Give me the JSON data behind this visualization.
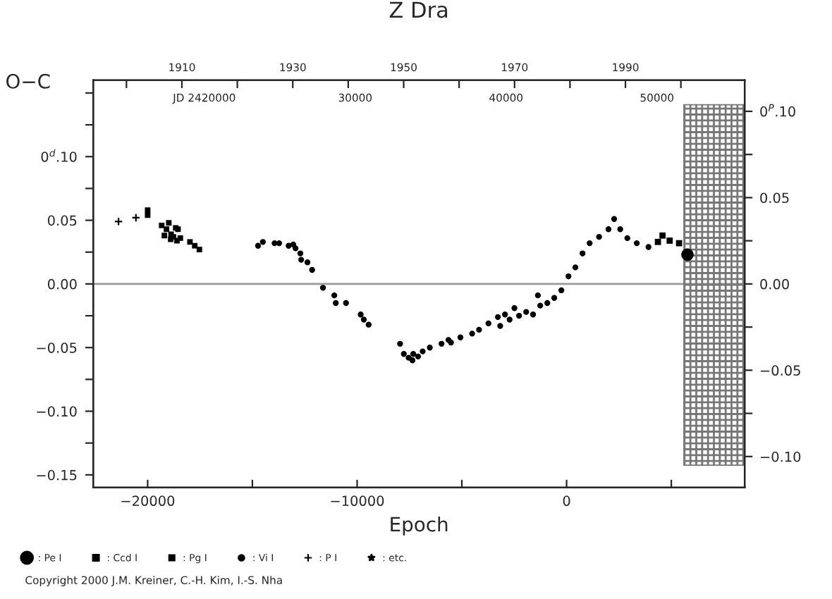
{
  "chart_data": {
    "type": "scatter",
    "title": "Z Dra",
    "xlabel": "Epoch",
    "ylabel": "O−C",
    "xlim": [
      -22600,
      8500
    ],
    "ylim": [
      -0.16,
      0.16
    ],
    "xticks": [
      {
        "value": -20000,
        "label": "−20000"
      },
      {
        "value": -15000,
        "label": null
      },
      {
        "value": -10000,
        "label": "−10000"
      },
      {
        "value": -5000,
        "label": null
      },
      {
        "value": 0,
        "label": "0"
      },
      {
        "value": 5000,
        "label": null
      }
    ],
    "yticks": [
      {
        "value": -0.15,
        "label": "−0.15"
      },
      {
        "value": -0.125,
        "label": null
      },
      {
        "value": -0.1,
        "label": "−0.10"
      },
      {
        "value": -0.075,
        "label": null
      },
      {
        "value": -0.05,
        "label": "−0.05"
      },
      {
        "value": -0.025,
        "label": null
      },
      {
        "value": 0,
        "label": "0.00"
      },
      {
        "value": 0.025,
        "label": null
      },
      {
        "value": 0.05,
        "label": "0.05"
      },
      {
        "value": 0.075,
        "label": null
      },
      {
        "value": 0.1,
        "label": "0$^{d}$.10"
      },
      {
        "value": 0.125,
        "label": null
      },
      {
        "value": 0.15,
        "label": null
      }
    ],
    "y2lim": [
      -0.118,
      0.118
    ],
    "y2ticks": [
      {
        "value": -0.1,
        "label": "−0.10"
      },
      {
        "value": -0.075,
        "label": null
      },
      {
        "value": -0.05,
        "label": "−0.05"
      },
      {
        "value": -0.025,
        "label": null
      },
      {
        "value": 0,
        "label": "0.00"
      },
      {
        "value": 0.025,
        "label": null
      },
      {
        "value": 0.05,
        "label": "0.05"
      },
      {
        "value": 0.075,
        "label": null
      },
      {
        "value": 0.1,
        "label": "0$^{P}$.10"
      }
    ],
    "x2lim": [
      1894.0,
      2011.5
    ],
    "x2ticks": [
      {
        "value": 1900,
        "label": null
      },
      {
        "value": 1910,
        "label": "1910"
      },
      {
        "value": 1920,
        "label": null
      },
      {
        "value": 1930,
        "label": "1930"
      },
      {
        "value": 1940,
        "label": null
      },
      {
        "value": 1950,
        "label": "1950"
      },
      {
        "value": 1960,
        "label": null
      },
      {
        "value": 1970,
        "label": "1970"
      },
      {
        "value": 1980,
        "label": null
      },
      {
        "value": 1990,
        "label": "1990"
      },
      {
        "value": 2000,
        "label": null
      }
    ],
    "ref_lines": [
      {
        "axis": "y",
        "value": 0,
        "color": "#999999"
      }
    ],
    "bands": [
      {
        "axis": "x",
        "from": 5600,
        "to": 8500,
        "color": "#777777"
      }
    ],
    "legend": "bottom",
    "series": [
      {
        "name": ": Pe I",
        "color": "#000000",
        "marker": "circle",
        "x": [
          5770
        ],
        "values": [
          0.023
        ]
      },
      {
        "name": ": Ccd I",
        "color": "#000000",
        "marker": "square",
        "x": [
          4360,
          4580,
          4920,
          5370
        ],
        "values": [
          0.033,
          0.038,
          0.034,
          0.032
        ]
      },
      {
        "name": ": Pg I",
        "color": "#000000",
        "marker": "square",
        "x": [
          -20000,
          -20000,
          -19330,
          -19100,
          -18990,
          -18880,
          -18770,
          -18660,
          -18550,
          -18440,
          -19200,
          -18900,
          -18600,
          -17980,
          -17750,
          -17530
        ],
        "values": [
          0.058,
          0.054,
          0.046,
          0.043,
          0.048,
          0.039,
          0.037,
          0.044,
          0.043,
          0.036,
          0.038,
          0.035,
          0.034,
          0.033,
          0.03,
          0.027
        ]
      },
      {
        "name": ": Vi I",
        "color": "#000000",
        "marker": "circle",
        "x": [
          -14730,
          -14500,
          -13940,
          -13720,
          -13270,
          -13050,
          -12940,
          -12710,
          -12670,
          -12370,
          -12150,
          -11630,
          -11090,
          -11020,
          -10530,
          -9830,
          -9680,
          -9450,
          -7950,
          -7770,
          -7540,
          -7360,
          -7320,
          -7090,
          -6870,
          -6530,
          -5970,
          -5640,
          -5520,
          -5070,
          -4510,
          -4180,
          -3730,
          -3280,
          -3170,
          -2940,
          -2720,
          -2490,
          -2270,
          -1930,
          -1600,
          -1370,
          -1260,
          -920,
          -590,
          -250,
          90,
          420,
          760,
          1100,
          1550,
          2000,
          2270,
          2560,
          2900,
          3350,
          3910
        ],
        "values": [
          0.03,
          0.033,
          0.032,
          0.032,
          0.03,
          0.031,
          0.028,
          0.024,
          0.019,
          0.017,
          0.011,
          -0.003,
          -0.009,
          -0.015,
          -0.015,
          -0.024,
          -0.028,
          -0.032,
          -0.047,
          -0.055,
          -0.058,
          -0.06,
          -0.055,
          -0.057,
          -0.053,
          -0.05,
          -0.047,
          -0.044,
          -0.046,
          -0.042,
          -0.039,
          -0.036,
          -0.031,
          -0.026,
          -0.033,
          -0.024,
          -0.028,
          -0.019,
          -0.025,
          -0.022,
          -0.024,
          -0.009,
          -0.017,
          -0.015,
          -0.011,
          -0.005,
          0.006,
          0.013,
          0.024,
          0.032,
          0.037,
          0.043,
          0.051,
          0.043,
          0.036,
          0.032,
          0.029
        ]
      },
      {
        "name": ": P I",
        "color": "#000000",
        "marker": "cross",
        "x": [
          -21390,
          -20560
        ],
        "values": [
          0.049,
          0.052
        ]
      },
      {
        "name": ": etc.",
        "color": "#000000",
        "marker": "star"
      }
    ],
    "annotations": [
      "JD 2420000",
      "30000",
      "40000",
      "50000",
      "Copyright 2000 J.M. Kreiner, C.-H. Kim, I.-S. Nha"
    ]
  }
}
